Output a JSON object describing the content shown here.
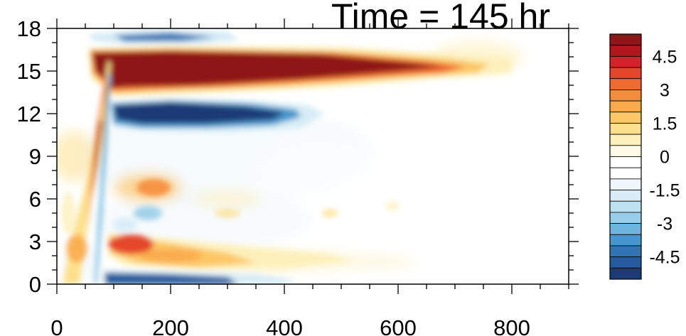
{
  "chart_data": {
    "type": "heatmap",
    "title": "Time = 145 hr",
    "xlabel": "",
    "ylabel": "",
    "xlim": [
      0,
      900
    ],
    "ylim": [
      0,
      18
    ],
    "x_ticks": [
      0,
      200,
      400,
      600,
      800
    ],
    "y_ticks": [
      0,
      3,
      6,
      9,
      12,
      15,
      18
    ],
    "grid": false,
    "colorbar": {
      "placement": "right",
      "range": [
        -5.5,
        5.5
      ],
      "step": 0.5,
      "tick_values": [
        4.5,
        3,
        1.5,
        0,
        -1.5,
        -3,
        -4.5
      ],
      "tick_labels": [
        "4.5",
        "3",
        "1.5",
        "0",
        "-1.5",
        "-3",
        "-4.5"
      ],
      "colors": [
        "#8e1518",
        "#b0161b",
        "#d1232a",
        "#e4462c",
        "#ef6b30",
        "#f58c3a",
        "#f9aa4c",
        "#fcc766",
        "#fde08e",
        "#fdf0bb",
        "#fffbe6",
        "#ffffff",
        "#ffffff",
        "#eef7fb",
        "#d7ecf6",
        "#bde1f1",
        "#98cde9",
        "#6db5dd",
        "#4796cb",
        "#2f74b5",
        "#255a9e",
        "#1c3b76"
      ]
    },
    "features": [
      {
        "name": "upper warm band",
        "x": [
          60,
          800
        ],
        "y": [
          13.5,
          16.5
        ],
        "peak": 5.5
      },
      {
        "name": "upper cold band",
        "x": [
          95,
          420
        ],
        "y": [
          10.8,
          13.0
        ],
        "peak": -5.5
      },
      {
        "name": "top cold band",
        "x": [
          60,
          300
        ],
        "y": [
          16.6,
          18
        ],
        "peak": -4.5
      },
      {
        "name": "low warm band",
        "x": [
          90,
          500
        ],
        "y": [
          1.0,
          3.6
        ],
        "peak": 4.0
      },
      {
        "name": "bottom cold band",
        "x": [
          80,
          400
        ],
        "y": [
          0,
          1.0
        ],
        "peak": -5.0
      },
      {
        "name": "front wave",
        "x": [
          5,
          95
        ],
        "y": [
          0,
          16
        ],
        "peak": 5.5
      }
    ]
  }
}
